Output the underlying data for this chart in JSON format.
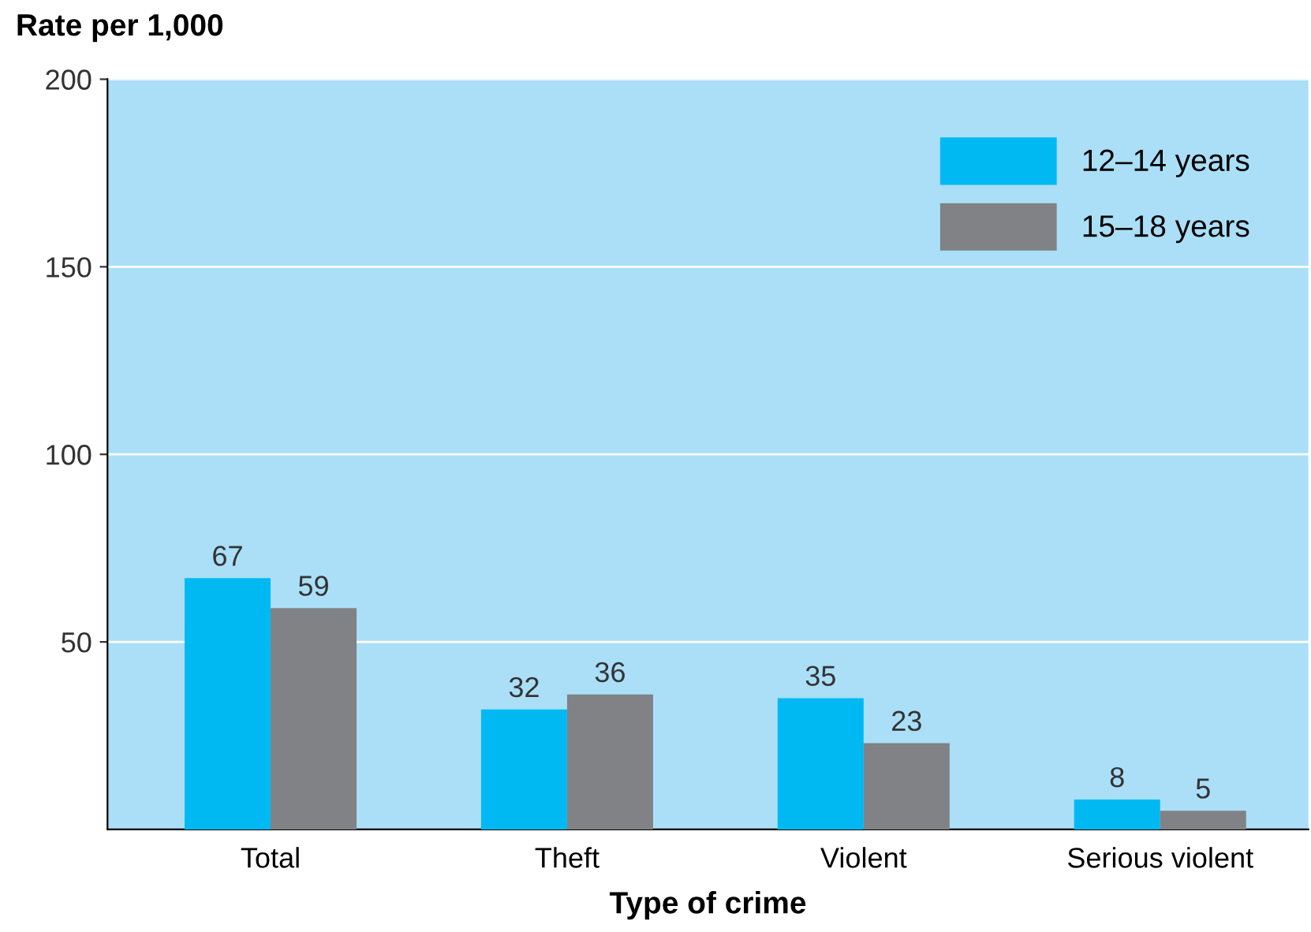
{
  "chart_data": {
    "type": "bar",
    "ylabel": "Rate per 1,000",
    "xlabel": "Type of crime",
    "categories": [
      "Total",
      "Theft",
      "Violent",
      "Serious violent"
    ],
    "series": [
      {
        "name": "12–14 years",
        "color": "#00b9f2",
        "values": [
          67,
          32,
          35,
          8
        ]
      },
      {
        "name": "15–18 years",
        "color": "#808285",
        "values": [
          59,
          36,
          23,
          5
        ]
      }
    ],
    "ylim": [
      0,
      200
    ],
    "yticks": [
      50,
      100,
      150,
      200
    ],
    "grid": "y",
    "legend": "top right",
    "data_labels": true
  }
}
